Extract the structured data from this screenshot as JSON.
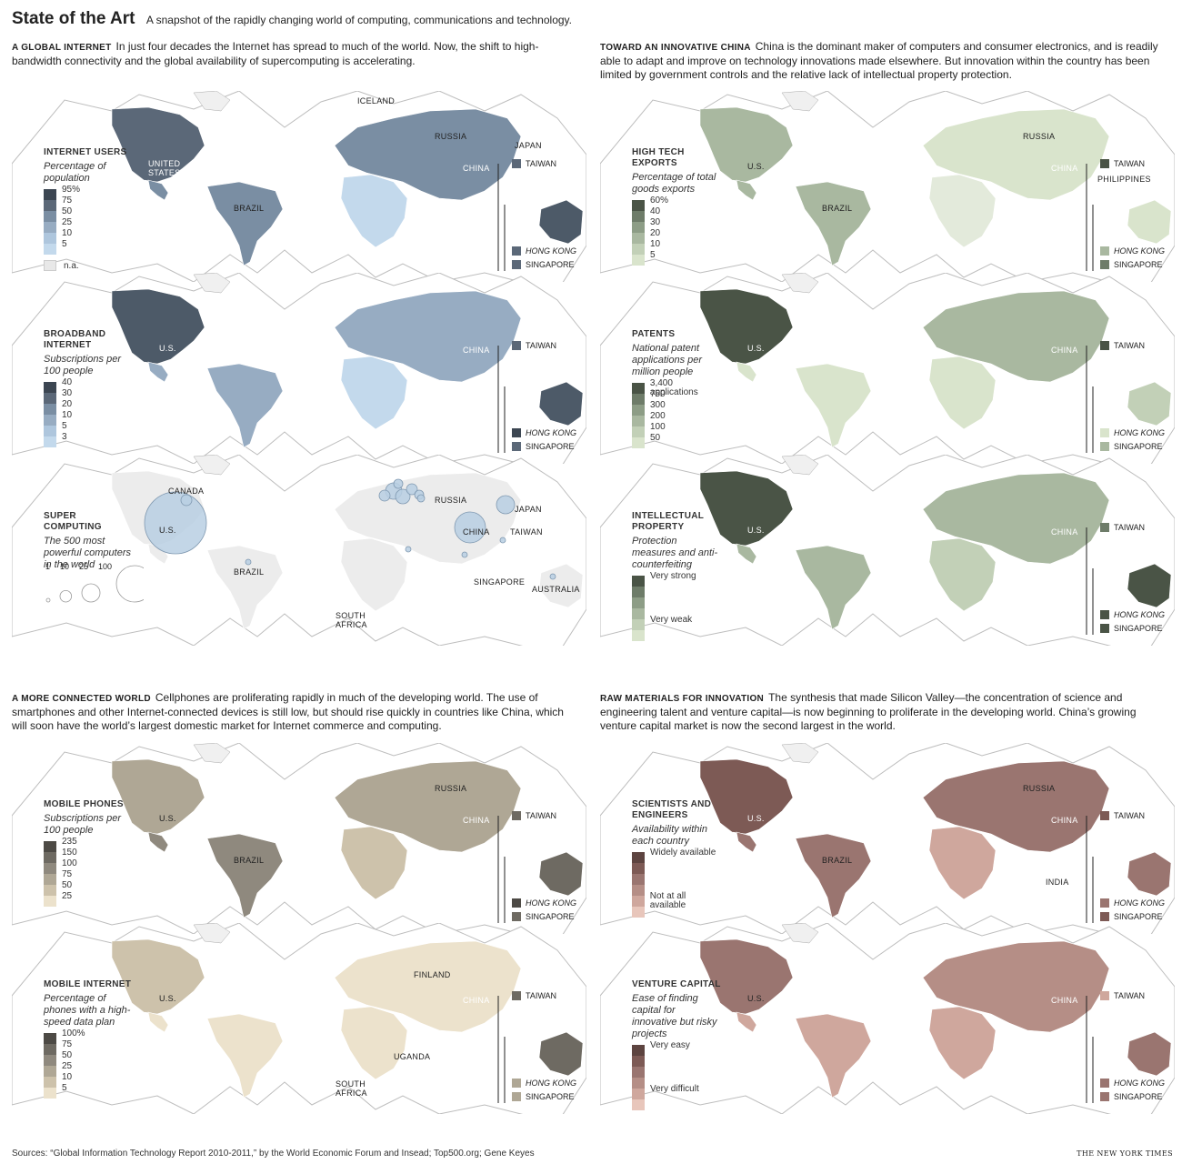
{
  "header": {
    "title": "State of the Art",
    "subtitle": "A snapshot of the rapidly changing world of computing, communications and technology."
  },
  "sections": {
    "global_internet": {
      "kicker": "A GLOBAL INTERNET",
      "text": "In just four decades the Internet has spread to much of the world. Now, the shift to high-bandwidth connectivity and the global availability of supercomputing is accelerating."
    },
    "china": {
      "kicker": "TOWARD AN INNOVATIVE CHINA",
      "text": "China is the dominant maker of computers and consumer electronics, and is readily able to adapt and improve on technology innovations made elsewhere. But innovation within the country has been limited by government controls and the relative lack of intellectual property protection."
    },
    "connected": {
      "kicker": "A MORE CONNECTED WORLD",
      "text": "Cellphones are proliferating rapidly in much of the developing world. The use of smartphones and other Internet-connected devices is still low, but should rise quickly in countries like China, which will soon have the world’s largest domestic market for Internet commerce and computing."
    },
    "raw": {
      "kicker": "RAW MATERIALS FOR INNOVATION",
      "text": "The synthesis that made Silicon Valley—the concentration of science and engineering talent and venture capital—is now beginning to proliferate in the developing world. China’s growing venture capital market is now the second largest in the world."
    }
  },
  "maps": {
    "internet_users": {
      "title": "INTERNET USERS",
      "subtitle": "Percentage of population",
      "scale": [
        "95%",
        "75",
        "50",
        "25",
        "10",
        "5"
      ],
      "colors": [
        "#3c4652",
        "#5b6878",
        "#7a8ea3",
        "#97acc2",
        "#aec6dd",
        "#c3d9ec"
      ],
      "na": "n.a.",
      "labels": [
        "ICELAND",
        "RUSSIA",
        "JAPAN",
        "UNITED STATES",
        "BRAZIL",
        "CHINA"
      ],
      "callouts": [
        {
          "name": "TAIWAN",
          "italic": false,
          "color": "#5b6878"
        },
        {
          "name": "HONG KONG",
          "italic": true,
          "color": "#5b6878"
        },
        {
          "name": "SINGAPORE",
          "italic": false,
          "color": "#5b6878"
        }
      ],
      "americas": "#5b6878",
      "eurasia": "#7a8ea3",
      "africa": "#c3d9ec",
      "australia": "#4d5a68",
      "south_america": "#7a8ea3"
    },
    "broadband": {
      "title": "BROADBAND INTERNET",
      "subtitle": "Subscriptions per 100 people",
      "scale": [
        "40",
        "30",
        "20",
        "10",
        "5",
        "3"
      ],
      "colors": [
        "#3c4652",
        "#5b6878",
        "#7a8ea3",
        "#97acc2",
        "#aec6dd",
        "#c3d9ec"
      ],
      "labels": [
        "U.S.",
        "CHINA"
      ],
      "callouts": [
        {
          "name": "TAIWAN",
          "italic": false,
          "color": "#5b6878"
        },
        {
          "name": "HONG KONG",
          "italic": true,
          "color": "#3c4652"
        },
        {
          "name": "SINGAPORE",
          "italic": false,
          "color": "#5b6878"
        }
      ],
      "americas": "#4d5a68",
      "eurasia": "#97acc2",
      "africa": "#c3d9ec",
      "australia": "#4d5a68",
      "south_america": "#97acc2"
    },
    "supercomputing": {
      "title": "SUPER COMPUTING",
      "subtitle": "The 500 most powerful computers in the world",
      "circle_legend": [
        "1",
        "10",
        "25",
        "100"
      ],
      "circle_values": [
        1,
        10,
        25,
        100
      ],
      "labels": [
        "CANADA",
        "U.S.",
        "RUSSIA",
        "JAPAN",
        "CHINA",
        "TAIWAN",
        "BRAZIL",
        "SINGAPORE",
        "AUSTRALIA",
        "SOUTH AFRICA"
      ],
      "color": "#b9cfe3"
    },
    "high_tech": {
      "title": "HIGH TECH EXPORTS",
      "subtitle": "Percentage of total goods exports",
      "scale": [
        "60%",
        "40",
        "30",
        "20",
        "10",
        "5"
      ],
      "colors": [
        "#4a5446",
        "#6e7c69",
        "#8d9d86",
        "#a9b8a0",
        "#c2d0b7",
        "#d9e4cc"
      ],
      "labels": [
        "RUSSIA",
        "U.S.",
        "BRAZIL",
        "CHINA",
        "PHILIPPINES"
      ],
      "callouts": [
        {
          "name": "TAIWAN",
          "italic": false,
          "color": "#4a5446"
        },
        {
          "name": "HONG KONG",
          "italic": true,
          "color": "#a9b8a0"
        },
        {
          "name": "SINGAPORE",
          "italic": false,
          "color": "#6e7c69"
        }
      ],
      "americas": "#a9b8a0",
      "eurasia": "#d9e4cc",
      "africa": "#e3eadb",
      "australia": "#d9e4cc",
      "south_america": "#a9b8a0"
    },
    "patents": {
      "title": "PATENTS",
      "subtitle": "National patent applications per million people",
      "scale": [
        "3,400 applications",
        "750",
        "300",
        "200",
        "100",
        "50"
      ],
      "colors": [
        "#4a5446",
        "#6e7c69",
        "#8d9d86",
        "#a9b8a0",
        "#c2d0b7",
        "#d9e4cc"
      ],
      "labels": [
        "U.S.",
        "CHINA"
      ],
      "callouts": [
        {
          "name": "TAIWAN",
          "italic": false,
          "color": "#4a5446"
        },
        {
          "name": "HONG KONG",
          "italic": true,
          "color": "#d9e4cc"
        },
        {
          "name": "SINGAPORE",
          "italic": false,
          "color": "#a9b8a0"
        }
      ],
      "americas": "#4a5446",
      "eurasia": "#a9b8a0",
      "africa": "#d9e4cc",
      "australia": "#c2d0b7",
      "south_america": "#d9e4cc"
    },
    "ip": {
      "title": "INTELLECTUAL PROPERTY",
      "subtitle": "Protection measures and anti-counterfeiting",
      "scale": [
        "Very strong",
        "",
        "",
        "",
        "Very weak"
      ],
      "colors": [
        "#4a5446",
        "#6e7c69",
        "#8d9d86",
        "#a9b8a0",
        "#c2d0b7",
        "#d9e4cc"
      ],
      "labels": [
        "U.S.",
        "CHINA"
      ],
      "callouts": [
        {
          "name": "TAIWAN",
          "italic": false,
          "color": "#6e7c69"
        },
        {
          "name": "HONG KONG",
          "italic": true,
          "color": "#4a5446"
        },
        {
          "name": "SINGAPORE",
          "italic": false,
          "color": "#4a5446"
        }
      ],
      "americas": "#4a5446",
      "eurasia": "#a9b8a0",
      "africa": "#c2d0b7",
      "australia": "#4a5446",
      "south_america": "#a9b8a0"
    },
    "mobile_phones": {
      "title": "MOBILE PHONES",
      "subtitle": "Subscriptions per 100 people",
      "scale": [
        "235",
        "150",
        "100",
        "75",
        "50",
        "25"
      ],
      "colors": [
        "#4d4a45",
        "#6e6a62",
        "#8f897e",
        "#afa795",
        "#cdc2ab",
        "#ece2cc"
      ],
      "labels": [
        "RUSSIA",
        "U.S.",
        "BRAZIL",
        "CHINA"
      ],
      "callouts": [
        {
          "name": "TAIWAN",
          "italic": false,
          "color": "#6e6a62"
        },
        {
          "name": "HONG KONG",
          "italic": true,
          "color": "#4d4a45"
        },
        {
          "name": "SINGAPORE",
          "italic": false,
          "color": "#6e6a62"
        }
      ],
      "americas": "#afa795",
      "eurasia": "#afa795",
      "africa": "#cdc2ab",
      "australia": "#6e6a62",
      "south_america": "#8f897e"
    },
    "mobile_internet": {
      "title": "MOBILE INTERNET",
      "subtitle": "Percentage of phones with a high-speed data plan",
      "scale": [
        "100%",
        "75",
        "50",
        "25",
        "10",
        "5"
      ],
      "colors": [
        "#4d4a45",
        "#6e6a62",
        "#8f897e",
        "#afa795",
        "#cdc2ab",
        "#ece2cc"
      ],
      "labels": [
        "FINLAND",
        "U.S.",
        "CHINA",
        "UGANDA",
        "SOUTH AFRICA"
      ],
      "callouts": [
        {
          "name": "TAIWAN",
          "italic": false,
          "color": "#6e6a62"
        },
        {
          "name": "HONG KONG",
          "italic": true,
          "color": "#afa795"
        },
        {
          "name": "SINGAPORE",
          "italic": false,
          "color": "#afa795"
        }
      ],
      "americas": "#cdc2ab",
      "eurasia": "#ece2cc",
      "africa": "#ece2cc",
      "australia": "#6e6a62",
      "south_america": "#ece2cc"
    },
    "scientists": {
      "title": "SCIENTISTS AND ENGINEERS",
      "subtitle": "Availability within each country",
      "scale": [
        "Widely available",
        "",
        "",
        "",
        "Not at all available"
      ],
      "colors": [
        "#5d4440",
        "#7d5a55",
        "#9a7570",
        "#b58e86",
        "#cfa79d",
        "#e8c6bb"
      ],
      "labels": [
        "RUSSIA",
        "U.S.",
        "BRAZIL",
        "CHINA",
        "INDIA"
      ],
      "callouts": [
        {
          "name": "TAIWAN",
          "italic": false,
          "color": "#7d5a55"
        },
        {
          "name": "HONG KONG",
          "italic": true,
          "color": "#9a7570"
        },
        {
          "name": "SINGAPORE",
          "italic": false,
          "color": "#7d5a55"
        }
      ],
      "americas": "#7d5a55",
      "eurasia": "#9a7570",
      "africa": "#cfa79d",
      "australia": "#9a7570",
      "south_america": "#9a7570"
    },
    "venture": {
      "title": "VENTURE CAPITAL",
      "subtitle": "Ease of finding capital for innovative but risky projects",
      "scale": [
        "Very easy",
        "",
        "",
        "",
        "Very difficult"
      ],
      "colors": [
        "#5d4440",
        "#7d5a55",
        "#9a7570",
        "#b58e86",
        "#cfa79d",
        "#e8c6bb"
      ],
      "labels": [
        "U.S.",
        "CHINA"
      ],
      "callouts": [
        {
          "name": "TAIWAN",
          "italic": false,
          "color": "#cfa79d"
        },
        {
          "name": "HONG KONG",
          "italic": true,
          "color": "#9a7570"
        },
        {
          "name": "SINGAPORE",
          "italic": false,
          "color": "#9a7570"
        }
      ],
      "americas": "#9a7570",
      "eurasia": "#b58e86",
      "africa": "#cfa79d",
      "australia": "#9a7570",
      "south_america": "#cfa79d"
    }
  },
  "footer": {
    "sources": "Sources: “Global Information Technology Report 2010-2011,” by the World Economic Forum and Insead; Top500.org; Gene Keyes",
    "credit": "THE NEW YORK TIMES"
  }
}
